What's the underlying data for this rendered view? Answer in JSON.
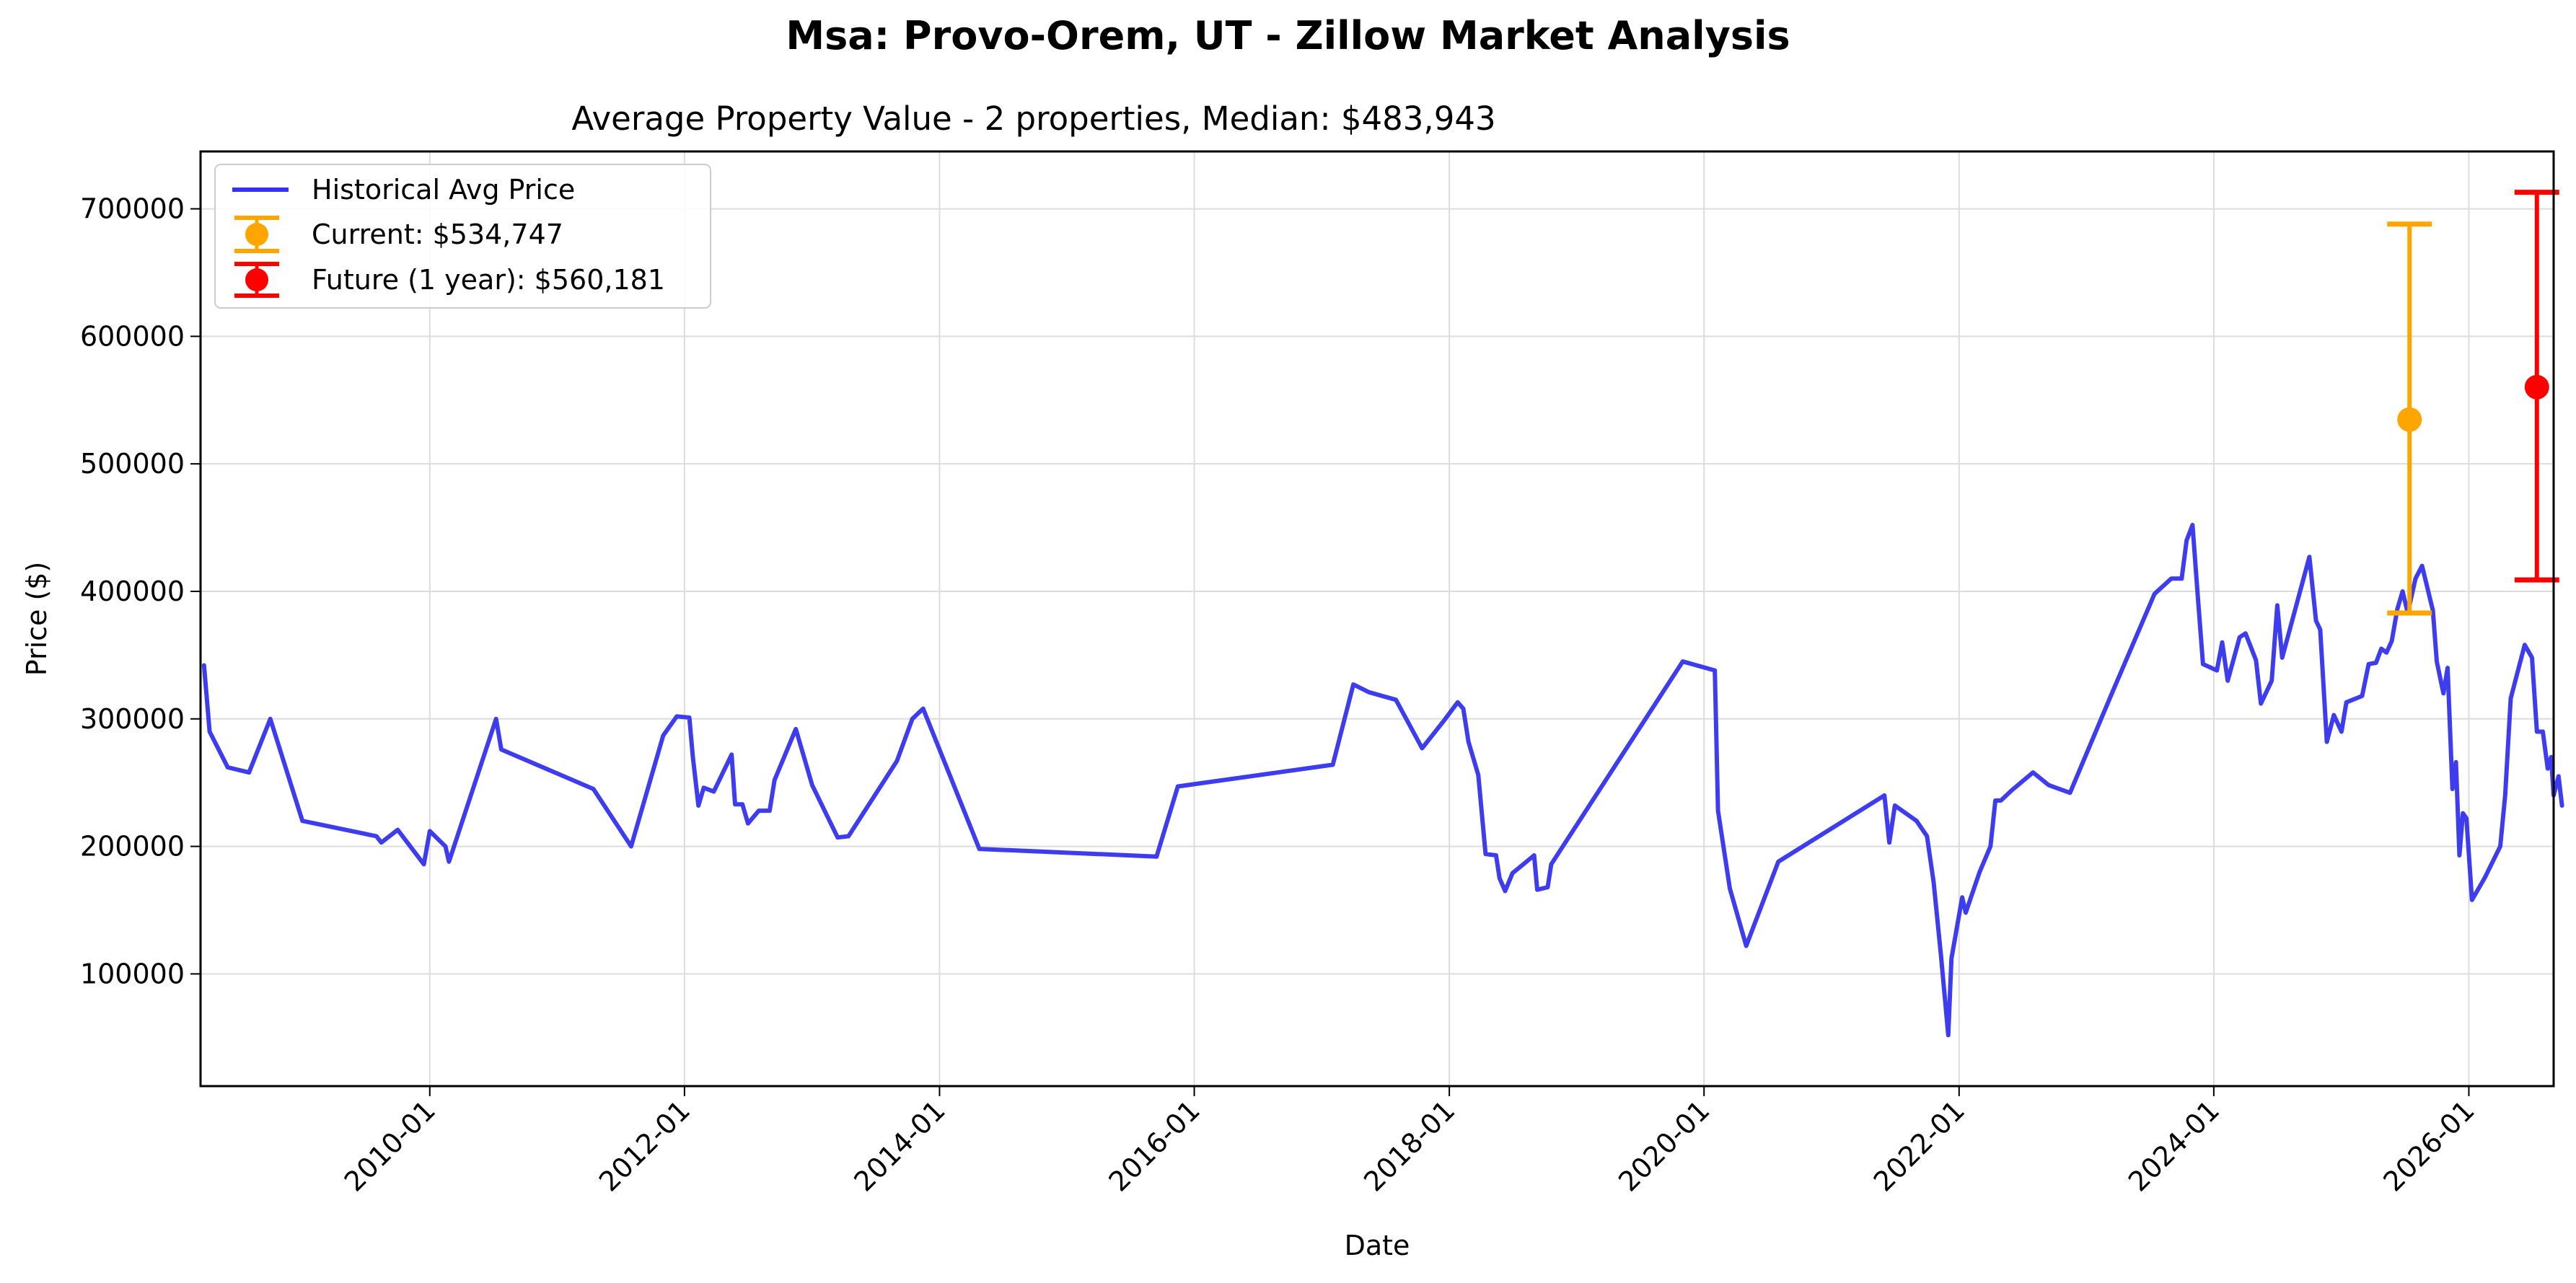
{
  "figure": {
    "suptitle": "Msa: Provo-Orem, UT - Zillow Market Analysis"
  },
  "chart_data": {
    "type": "line",
    "title": "Average Property Value - 2 properties, Median: $483,943",
    "xlabel": "Date",
    "ylabel": "Price ($)",
    "xlim": [
      "2008-03-15",
      "2026-09-01"
    ],
    "ylim": [
      12000,
      745000
    ],
    "x_ticks": [
      "2010-01",
      "2012-01",
      "2014-01",
      "2016-01",
      "2018-01",
      "2020-01",
      "2022-01",
      "2024-01",
      "2026-01"
    ],
    "y_ticks": [
      100000,
      200000,
      300000,
      400000,
      500000,
      600000,
      700000
    ],
    "grid": true,
    "legend_position": "top-left",
    "colors": {
      "historical": "#3333ee",
      "current": "#ffa500",
      "future": "#ff0000"
    },
    "series": [
      {
        "name": "Historical Avg Price",
        "points": [
          [
            "2008-03-25",
            342000
          ],
          [
            "2008-04-10",
            290000
          ],
          [
            "2008-06-01",
            262000
          ],
          [
            "2008-08-01",
            258000
          ],
          [
            "2008-10-01",
            300000
          ],
          [
            "2009-01-01",
            220000
          ],
          [
            "2009-08-01",
            208000
          ],
          [
            "2009-08-15",
            203000
          ],
          [
            "2009-10-01",
            213000
          ],
          [
            "2009-12-15",
            186000
          ],
          [
            "2010-01-01",
            212000
          ],
          [
            "2010-02-15",
            200000
          ],
          [
            "2010-02-25",
            188000
          ],
          [
            "2010-07-10",
            300000
          ],
          [
            "2010-07-25",
            276000
          ],
          [
            "2011-04-15",
            245000
          ],
          [
            "2011-08-01",
            200000
          ],
          [
            "2011-11-01",
            287000
          ],
          [
            "2011-12-10",
            302000
          ],
          [
            "2012-01-15",
            301000
          ],
          [
            "2012-01-25",
            270000
          ],
          [
            "2012-02-10",
            232000
          ],
          [
            "2012-02-25",
            246000
          ],
          [
            "2012-03-25",
            243000
          ],
          [
            "2012-05-15",
            272000
          ],
          [
            "2012-05-25",
            233000
          ],
          [
            "2012-06-15",
            233000
          ],
          [
            "2012-07-01",
            218000
          ],
          [
            "2012-08-01",
            228000
          ],
          [
            "2012-09-01",
            228000
          ],
          [
            "2012-09-15",
            252000
          ],
          [
            "2012-11-15",
            292000
          ],
          [
            "2013-01-01",
            248000
          ],
          [
            "2013-03-15",
            207000
          ],
          [
            "2013-04-15",
            208000
          ],
          [
            "2013-09-01",
            267000
          ],
          [
            "2013-10-15",
            300000
          ],
          [
            "2013-11-15",
            308000
          ],
          [
            "2014-04-25",
            198000
          ],
          [
            "2015-09-15",
            192000
          ],
          [
            "2015-11-15",
            247000
          ],
          [
            "2017-02-01",
            264000
          ],
          [
            "2017-04-01",
            327000
          ],
          [
            "2017-05-15",
            321000
          ],
          [
            "2017-08-01",
            315000
          ],
          [
            "2017-10-15",
            277000
          ],
          [
            "2017-12-15",
            298000
          ],
          [
            "2018-01-25",
            313000
          ],
          [
            "2018-02-10",
            308000
          ],
          [
            "2018-02-25",
            282000
          ],
          [
            "2018-03-25",
            256000
          ],
          [
            "2018-04-15",
            194000
          ],
          [
            "2018-05-15",
            193000
          ],
          [
            "2018-05-25",
            175000
          ],
          [
            "2018-06-10",
            165000
          ],
          [
            "2018-07-01",
            179000
          ],
          [
            "2018-08-01",
            186000
          ],
          [
            "2018-09-01",
            193000
          ],
          [
            "2018-09-10",
            166000
          ],
          [
            "2018-10-10",
            168000
          ],
          [
            "2018-10-20",
            186000
          ],
          [
            "2019-11-01",
            345000
          ],
          [
            "2020-02-01",
            338000
          ],
          [
            "2020-02-10",
            228000
          ],
          [
            "2020-03-15",
            167000
          ],
          [
            "2020-05-01",
            122000
          ],
          [
            "2020-08-01",
            188000
          ],
          [
            "2021-06-01",
            240000
          ],
          [
            "2021-06-15",
            203000
          ],
          [
            "2021-07-01",
            232000
          ],
          [
            "2021-09-01",
            220000
          ],
          [
            "2021-10-01",
            208000
          ],
          [
            "2021-10-20",
            172000
          ],
          [
            "2021-11-10",
            115000
          ],
          [
            "2021-12-01",
            52000
          ],
          [
            "2021-12-10",
            112000
          ],
          [
            "2022-01-10",
            160000
          ],
          [
            "2022-01-20",
            148000
          ],
          [
            "2022-03-01",
            180000
          ],
          [
            "2022-04-01",
            200000
          ],
          [
            "2022-04-15",
            236000
          ],
          [
            "2022-05-01",
            236000
          ],
          [
            "2022-06-01",
            244000
          ],
          [
            "2022-08-01",
            258000
          ],
          [
            "2022-09-15",
            248000
          ],
          [
            "2022-11-15",
            242000
          ],
          [
            "2023-03-15",
            320000
          ],
          [
            "2023-07-15",
            398000
          ],
          [
            "2023-09-01",
            410000
          ],
          [
            "2023-10-01",
            410000
          ],
          [
            "2023-10-15",
            440000
          ],
          [
            "2023-11-01",
            452000
          ],
          [
            "2023-11-15",
            400000
          ],
          [
            "2023-12-01",
            343000
          ],
          [
            "2024-01-10",
            338000
          ],
          [
            "2024-01-25",
            360000
          ],
          [
            "2024-02-10",
            330000
          ],
          [
            "2024-02-25",
            345000
          ],
          [
            "2024-03-15",
            364000
          ],
          [
            "2024-04-01",
            367000
          ],
          [
            "2024-05-01",
            346000
          ],
          [
            "2024-05-15",
            312000
          ],
          [
            "2024-06-15",
            330000
          ],
          [
            "2024-07-01",
            389000
          ],
          [
            "2024-07-15",
            348000
          ],
          [
            "2024-10-01",
            427000
          ],
          [
            "2024-10-20",
            377000
          ],
          [
            "2024-11-01",
            370000
          ],
          [
            "2024-11-20",
            282000
          ],
          [
            "2024-12-10",
            303000
          ],
          [
            "2025-01-01",
            290000
          ],
          [
            "2025-01-15",
            313000
          ],
          [
            "2025-03-01",
            318000
          ],
          [
            "2025-03-20",
            343000
          ],
          [
            "2025-04-10",
            344000
          ],
          [
            "2025-04-25",
            355000
          ],
          [
            "2025-05-10",
            352000
          ],
          [
            "2025-05-25",
            361000
          ],
          [
            "2025-06-10",
            386000
          ],
          [
            "2025-06-25",
            400000
          ],
          [
            "2025-07-10",
            383000
          ],
          [
            "2025-08-01",
            410000
          ],
          [
            "2025-08-20",
            420000
          ],
          [
            "2025-09-20",
            385000
          ],
          [
            "2025-10-01",
            345000
          ],
          [
            "2025-10-20",
            320000
          ],
          [
            "2025-11-01",
            340000
          ],
          [
            "2025-11-15",
            245000
          ],
          [
            "2025-11-25",
            266000
          ],
          [
            "2025-12-05",
            193000
          ],
          [
            "2025-12-15",
            226000
          ],
          [
            "2025-12-25",
            222000
          ],
          [
            "2026-01-10",
            158000
          ],
          [
            "2026-02-15",
            175000
          ],
          [
            "2026-04-01",
            200000
          ],
          [
            "2026-04-15",
            240000
          ],
          [
            "2026-05-01",
            316000
          ],
          [
            "2026-05-20",
            336000
          ],
          [
            "2026-06-10",
            358000
          ],
          [
            "2026-07-01",
            348000
          ],
          [
            "2026-07-15",
            290000
          ],
          [
            "2026-08-01",
            290000
          ],
          [
            "2026-08-15",
            261000
          ],
          [
            "2026-08-25",
            270000
          ],
          [
            "2026-09-01",
            240000
          ],
          [
            "2026-09-15",
            255000
          ],
          [
            "2026-09-25",
            232000
          ]
        ]
      }
    ],
    "current": {
      "label": "Current: $534,747",
      "date": "2025-07-15",
      "value": 534747,
      "low": 383000,
      "high": 688000
    },
    "future": {
      "label": "Future (1 year): $560,181",
      "date": "2026-07-15",
      "value": 560181,
      "low": 409000,
      "high": 713000
    }
  }
}
